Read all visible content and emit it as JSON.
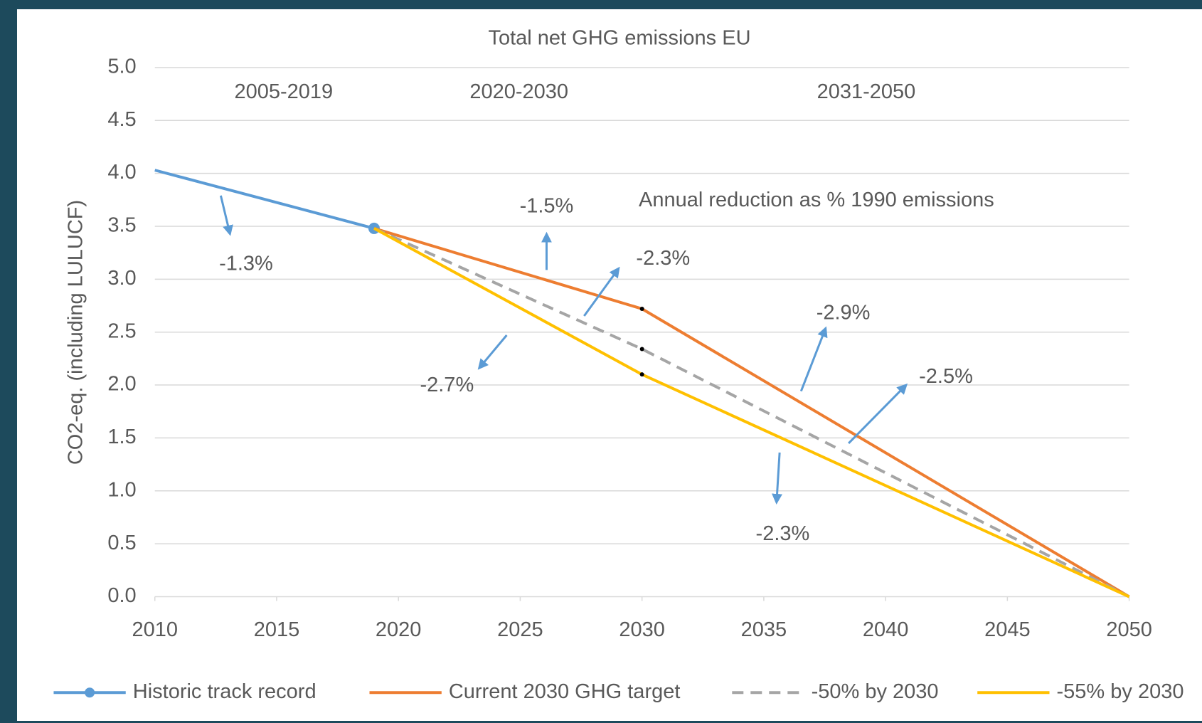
{
  "chart_data": {
    "type": "line",
    "title": "Total net GHG emissions EU",
    "ylabel": "CO2-eq. (including LULUCF)",
    "xlim": [
      2010,
      2050
    ],
    "xticks": [
      2010,
      2015,
      2020,
      2025,
      2030,
      2035,
      2040,
      2045,
      2050
    ],
    "ylim": [
      0,
      5
    ],
    "yticks": [
      {
        "value": 0,
        "label": "0.0"
      },
      {
        "value": 0.5,
        "label": "0.5"
      },
      {
        "value": 1,
        "label": "1.0"
      },
      {
        "value": 1.5,
        "label": "1.5"
      },
      {
        "value": 2,
        "label": "2.0"
      },
      {
        "value": 2.5,
        "label": "2.5"
      },
      {
        "value": 3,
        "label": "3.0"
      },
      {
        "value": 3.5,
        "label": "3.5"
      },
      {
        "value": 4,
        "label": "4.0"
      },
      {
        "value": 4.5,
        "label": "4.5"
      },
      {
        "value": 5,
        "label": "5.0"
      }
    ],
    "grid": true,
    "legend": "bottom",
    "series": [
      {
        "name": "Historic track record",
        "color": "#5b9bd5",
        "x": [
          2010,
          2019
        ],
        "values": [
          4.03,
          3.48
        ],
        "marker": true
      },
      {
        "name": "Current 2030 GHG target",
        "color": "#ed7d31",
        "x": [
          2019,
          2030,
          2050
        ],
        "values": [
          3.48,
          2.72,
          0
        ]
      },
      {
        "name": "-50% by 2030",
        "color": "#a5a5a5",
        "dashed": true,
        "x": [
          2019,
          2030,
          2050
        ],
        "values": [
          3.48,
          2.34,
          0
        ]
      },
      {
        "name": "-55% by 2030",
        "color": "#ffc000",
        "x": [
          2019,
          2030,
          2050
        ],
        "values": [
          3.48,
          2.1,
          0
        ]
      }
    ],
    "annotations": [
      "2005-2019",
      "2020-2030",
      "2031-2050",
      "Annual reduction as % 1990 emissions",
      "-1.5%",
      "-1.3%",
      "-2.3%",
      "-2.9%",
      "-2.7%",
      "-2.5%",
      "-2.3%"
    ]
  }
}
